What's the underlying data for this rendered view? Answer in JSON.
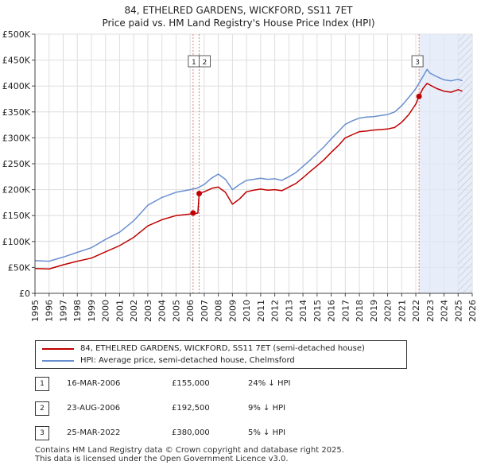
{
  "chart_data": {
    "type": "line",
    "title": "84, ETHELRED GARDENS, WICKFORD, SS11 7ET",
    "subtitle": "Price paid vs. HM Land Registry's House Price Index (HPI)",
    "xlim": [
      1995,
      2026
    ],
    "ylim": [
      0,
      500000
    ],
    "x_ticks": [
      1995,
      1996,
      1997,
      1998,
      1999,
      2000,
      2001,
      2002,
      2003,
      2004,
      2005,
      2006,
      2007,
      2008,
      2009,
      2010,
      2011,
      2012,
      2013,
      2014,
      2015,
      2016,
      2017,
      2018,
      2019,
      2020,
      2021,
      2022,
      2023,
      2024,
      2025,
      2026
    ],
    "y_ticks": [
      0,
      50000,
      100000,
      150000,
      200000,
      250000,
      300000,
      350000,
      400000,
      450000,
      500000
    ],
    "y_tick_labels": [
      "£0",
      "£50K",
      "£100K",
      "£150K",
      "£200K",
      "£250K",
      "£300K",
      "£350K",
      "£400K",
      "£450K",
      "£500K"
    ],
    "series": [
      {
        "name": "84, ETHELRED GARDENS, WICKFORD, SS11 7ET (semi-detached house)",
        "color": "#c00000",
        "points": [
          [
            1995.0,
            48000
          ],
          [
            1996.0,
            47000
          ],
          [
            1997.0,
            55000
          ],
          [
            1998.0,
            62000
          ],
          [
            1999.0,
            68000
          ],
          [
            2000.0,
            80000
          ],
          [
            2001.0,
            92000
          ],
          [
            2002.0,
            108000
          ],
          [
            2003.0,
            130000
          ],
          [
            2004.0,
            142000
          ],
          [
            2005.0,
            150000
          ],
          [
            2006.0,
            153000
          ],
          [
            2006.21,
            155000
          ],
          [
            2006.4,
            154000
          ],
          [
            2006.55,
            155000
          ],
          [
            2006.64,
            192500
          ],
          [
            2007.0,
            196000
          ],
          [
            2007.6,
            203000
          ],
          [
            2008.0,
            205000
          ],
          [
            2008.5,
            195000
          ],
          [
            2009.0,
            172000
          ],
          [
            2009.5,
            182000
          ],
          [
            2010.0,
            196000
          ],
          [
            2010.5,
            199000
          ],
          [
            2011.0,
            201000
          ],
          [
            2011.5,
            199000
          ],
          [
            2012.0,
            200000
          ],
          [
            2012.5,
            198000
          ],
          [
            2013.0,
            205000
          ],
          [
            2013.5,
            212000
          ],
          [
            2014.0,
            223000
          ],
          [
            2014.5,
            235000
          ],
          [
            2015.0,
            246000
          ],
          [
            2015.5,
            258000
          ],
          [
            2016.0,
            272000
          ],
          [
            2016.5,
            285000
          ],
          [
            2017.0,
            300000
          ],
          [
            2017.5,
            306000
          ],
          [
            2018.0,
            312000
          ],
          [
            2018.5,
            313000
          ],
          [
            2019.0,
            315000
          ],
          [
            2019.5,
            316000
          ],
          [
            2020.0,
            317000
          ],
          [
            2020.5,
            320000
          ],
          [
            2021.0,
            330000
          ],
          [
            2021.5,
            345000
          ],
          [
            2022.0,
            365000
          ],
          [
            2022.23,
            380000
          ],
          [
            2022.5,
            395000
          ],
          [
            2022.8,
            405000
          ],
          [
            2023.0,
            402000
          ],
          [
            2023.5,
            395000
          ],
          [
            2024.0,
            390000
          ],
          [
            2024.5,
            388000
          ],
          [
            2025.0,
            393000
          ],
          [
            2025.3,
            390000
          ]
        ]
      },
      {
        "name": "HPI: Average price, semi-detached house, Chelmsford",
        "color": "#6a8fd0",
        "points": [
          [
            1995.0,
            63000
          ],
          [
            1996.0,
            62000
          ],
          [
            1997.0,
            70000
          ],
          [
            1998.0,
            79000
          ],
          [
            1999.0,
            88000
          ],
          [
            2000.0,
            104000
          ],
          [
            2001.0,
            118000
          ],
          [
            2002.0,
            140000
          ],
          [
            2003.0,
            170000
          ],
          [
            2004.0,
            185000
          ],
          [
            2005.0,
            195000
          ],
          [
            2006.0,
            200000
          ],
          [
            2006.5,
            203000
          ],
          [
            2007.0,
            210000
          ],
          [
            2007.5,
            222000
          ],
          [
            2008.0,
            230000
          ],
          [
            2008.5,
            220000
          ],
          [
            2009.0,
            200000
          ],
          [
            2009.5,
            210000
          ],
          [
            2010.0,
            218000
          ],
          [
            2010.5,
            220000
          ],
          [
            2011.0,
            222000
          ],
          [
            2011.5,
            220000
          ],
          [
            2012.0,
            221000
          ],
          [
            2012.5,
            218000
          ],
          [
            2013.0,
            225000
          ],
          [
            2013.5,
            233000
          ],
          [
            2014.0,
            245000
          ],
          [
            2014.5,
            257000
          ],
          [
            2015.0,
            270000
          ],
          [
            2015.5,
            283000
          ],
          [
            2016.0,
            298000
          ],
          [
            2016.5,
            312000
          ],
          [
            2017.0,
            326000
          ],
          [
            2017.5,
            333000
          ],
          [
            2018.0,
            338000
          ],
          [
            2018.5,
            340000
          ],
          [
            2019.0,
            341000
          ],
          [
            2019.5,
            343000
          ],
          [
            2020.0,
            345000
          ],
          [
            2020.5,
            350000
          ],
          [
            2021.0,
            362000
          ],
          [
            2021.5,
            378000
          ],
          [
            2022.0,
            395000
          ],
          [
            2022.5,
            418000
          ],
          [
            2022.8,
            432000
          ],
          [
            2023.0,
            425000
          ],
          [
            2023.5,
            418000
          ],
          [
            2024.0,
            412000
          ],
          [
            2024.5,
            410000
          ],
          [
            2025.0,
            413000
          ],
          [
            2025.3,
            410000
          ]
        ]
      }
    ],
    "transactions": [
      {
        "id": "1",
        "x": 2006.21,
        "value": 155000
      },
      {
        "id": "2",
        "x": 2006.64,
        "value": 192500
      },
      {
        "id": "3",
        "x": 2022.23,
        "value": 380000
      }
    ],
    "highlight_region": [
      2022.23,
      2026
    ],
    "hatch_region": [
      2025.0,
      2026
    ]
  },
  "legend": {
    "items": [
      {
        "label": "84, ETHELRED GARDENS, WICKFORD, SS11 7ET (semi-detached house)",
        "color": "#c00000"
      },
      {
        "label": "HPI: Average price, semi-detached house, Chelmsford",
        "color": "#6a8fd0"
      }
    ]
  },
  "table": {
    "rows": [
      {
        "num": "1",
        "date": "16-MAR-2006",
        "price": "£155,000",
        "hpi": "24% ↓ HPI"
      },
      {
        "num": "2",
        "date": "23-AUG-2006",
        "price": "£192,500",
        "hpi": "9% ↓ HPI"
      },
      {
        "num": "3",
        "date": "25-MAR-2022",
        "price": "£380,000",
        "hpi": "5% ↓ HPI"
      }
    ]
  },
  "footer": {
    "line1": "Contains HM Land Registry data © Crown copyright and database right 2025.",
    "line2": "This data is licensed under the Open Government Licence v3.0."
  }
}
